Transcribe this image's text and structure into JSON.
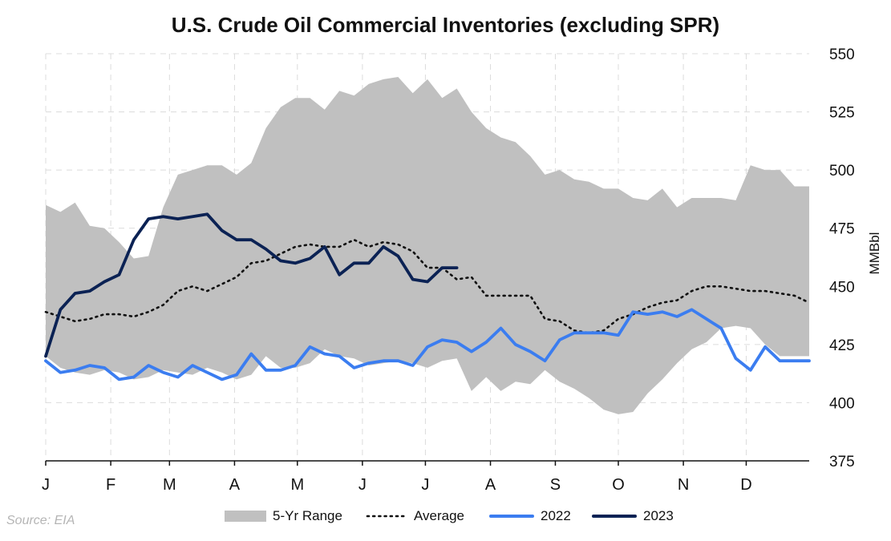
{
  "chart_data": {
    "type": "line",
    "title": "U.S. Crude Oil Commercial Inventories (excluding SPR)",
    "ylabel": "MMBbl",
    "xlabel": "",
    "ylim": [
      375,
      550
    ],
    "yticks": [
      375,
      400,
      425,
      450,
      475,
      500,
      525,
      550
    ],
    "xlim": [
      1,
      53
    ],
    "month_labels": [
      "J",
      "F",
      "M",
      "A",
      "M",
      "J",
      "J",
      "A",
      "S",
      "O",
      "N",
      "D"
    ],
    "month_week": [
      1,
      5.43,
      9.43,
      13.86,
      18.14,
      22.57,
      26.86,
      31.29,
      35.71,
      40,
      44.43,
      48.71
    ],
    "grid": true,
    "legend_position": "bottom",
    "range_color": "#c0c0c0",
    "series": [
      {
        "name": "5-Yr Range",
        "kind": "band",
        "x": [
          1,
          2,
          3,
          4,
          5,
          6,
          7,
          8,
          9,
          10,
          11,
          12,
          13,
          14,
          15,
          16,
          17,
          18,
          19,
          20,
          21,
          22,
          23,
          24,
          25,
          26,
          27,
          28,
          29,
          30,
          31,
          32,
          33,
          34,
          35,
          36,
          37,
          38,
          39,
          40,
          41,
          42,
          43,
          44,
          45,
          46,
          47,
          48,
          49,
          50,
          51,
          52,
          53
        ],
        "low": [
          420,
          415,
          413,
          412,
          414,
          413,
          410,
          411,
          414,
          413,
          412,
          415,
          413,
          410,
          412,
          420,
          415,
          415,
          417,
          423,
          420,
          419,
          416,
          417,
          418,
          417,
          415,
          418,
          419,
          405,
          411,
          405,
          409,
          408,
          414,
          409,
          406,
          402,
          397,
          395,
          396,
          404,
          410,
          417,
          423,
          426,
          432,
          433,
          432,
          425,
          420,
          420,
          420
        ],
        "high": [
          485,
          482,
          486,
          476,
          475,
          469,
          462,
          463,
          484,
          498,
          500,
          502,
          502,
          498,
          503,
          518,
          527,
          531,
          531,
          526,
          534,
          532,
          537,
          539,
          540,
          533,
          539,
          531,
          535,
          525,
          518,
          514,
          512,
          506,
          498,
          500,
          496,
          495,
          492,
          492,
          488,
          487,
          492,
          484,
          488,
          488,
          488,
          487,
          502,
          500,
          500,
          493,
          493
        ]
      },
      {
        "name": "Average",
        "kind": "dotted",
        "color": "#111111",
        "x": [
          1,
          2,
          3,
          4,
          5,
          6,
          7,
          8,
          9,
          10,
          11,
          12,
          13,
          14,
          15,
          16,
          17,
          18,
          19,
          20,
          21,
          22,
          23,
          24,
          25,
          26,
          27,
          28,
          29,
          30,
          31,
          32,
          33,
          34,
          35,
          36,
          37,
          38,
          39,
          40,
          41,
          42,
          43,
          44,
          45,
          46,
          47,
          48,
          49,
          50,
          51,
          52,
          53
        ],
        "values": [
          439,
          437,
          435,
          436,
          438,
          438,
          437,
          439,
          442,
          448,
          450,
          448,
          451,
          454,
          460,
          461,
          464,
          467,
          468,
          467,
          467,
          470,
          467,
          469,
          468,
          465,
          458,
          458,
          453,
          454,
          446,
          446,
          446,
          446,
          436,
          435,
          431,
          430,
          431,
          436,
          438,
          441,
          443,
          444,
          448,
          450,
          450,
          449,
          448,
          448,
          447,
          446,
          443
        ]
      },
      {
        "name": "2022",
        "kind": "line",
        "color": "#3b7df0",
        "x": [
          1,
          2,
          3,
          4,
          5,
          6,
          7,
          8,
          9,
          10,
          11,
          12,
          13,
          14,
          15,
          16,
          17,
          18,
          19,
          20,
          21,
          22,
          23,
          24,
          25,
          26,
          27,
          28,
          29,
          30,
          31,
          32,
          33,
          34,
          35,
          36,
          37,
          38,
          39,
          40,
          41,
          42,
          43,
          44,
          45,
          46,
          47,
          48,
          49,
          50,
          51,
          52,
          53
        ],
        "values": [
          418,
          413,
          414,
          416,
          415,
          410,
          411,
          416,
          413,
          411,
          416,
          413,
          410,
          412,
          421,
          414,
          414,
          416,
          424,
          421,
          420,
          415,
          417,
          418,
          418,
          416,
          424,
          427,
          426,
          422,
          426,
          432,
          425,
          422,
          418,
          427,
          430,
          430,
          430,
          429,
          439,
          438,
          439,
          437,
          440,
          436,
          432,
          419,
          414,
          424,
          418,
          418,
          418
        ]
      },
      {
        "name": "2023",
        "kind": "line",
        "color": "#0b2254",
        "x": [
          1,
          2,
          3,
          4,
          5,
          6,
          7,
          8,
          9,
          10,
          11,
          12,
          13,
          14,
          15,
          16,
          17,
          18,
          19,
          20,
          21,
          22,
          23,
          24,
          25,
          26,
          27,
          28,
          29
        ],
        "values": [
          420,
          440,
          447,
          448,
          452,
          455,
          470,
          479,
          480,
          479,
          480,
          481,
          474,
          470,
          470,
          466,
          461,
          460,
          462,
          467,
          455,
          460,
          460,
          467,
          463,
          453,
          452,
          458,
          458
        ]
      }
    ]
  },
  "legend": {
    "range_label": "5-Yr Range",
    "average_label": "Average",
    "y2022_label": "2022",
    "y2023_label": "2023"
  },
  "source": "Source: EIA"
}
